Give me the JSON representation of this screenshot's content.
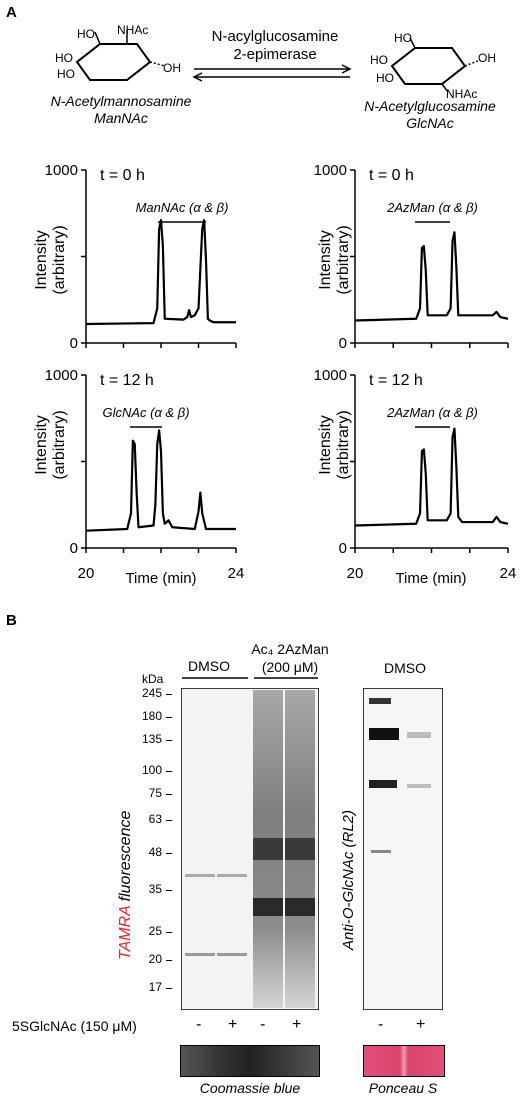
{
  "panel_a": {
    "letter": "A",
    "enzyme_line1": "N-acylglucosamine",
    "enzyme_line2": "2-epimerase",
    "left": {
      "name_line1": "N-Acetylmannosamine",
      "name_line2": "ManNAc",
      "groups": {
        "nhac": "NHAc",
        "ho1": "HO",
        "ho2": "HO",
        "ho3": "HO",
        "oh": "OH"
      }
    },
    "right": {
      "name_line1": "N-Acetylglucosamine",
      "name_line2": "GlcNAc",
      "groups": {
        "ho1": "HO",
        "ho2": "HO",
        "ho3": "HO",
        "oh": "OH",
        "nhac": "NHAc"
      }
    },
    "ylabel_line1": "Intensity",
    "ylabel_line2": "(arbitrary)",
    "xlabel": "Time (min)",
    "x_ticks": [
      "20",
      "24"
    ],
    "y_ticks": [
      "1000",
      "0"
    ]
  },
  "chart_data": [
    {
      "type": "line",
      "id": "tl",
      "time_label": "t = 0 h",
      "peak_label": "ManNAc (α & β)",
      "xlim": [
        20,
        24
      ],
      "ylim": [
        0,
        1000
      ],
      "xlabel": "",
      "ylabel": "Intensity (arbitrary)",
      "x": [
        20.0,
        21.8,
        21.9,
        21.95,
        22.0,
        22.05,
        22.1,
        22.6,
        22.7,
        22.75,
        22.8,
        22.9,
        23.0,
        23.1,
        23.15,
        23.2,
        23.25,
        23.3,
        23.4,
        24.0
      ],
      "y": [
        110,
        115,
        200,
        660,
        710,
        560,
        140,
        135,
        150,
        190,
        150,
        160,
        200,
        660,
        710,
        480,
        140,
        130,
        120,
        120
      ]
    },
    {
      "type": "line",
      "id": "tr",
      "time_label": "t = 0 h",
      "peak_label": "2AzMan (α & β)",
      "xlim": [
        20,
        24
      ],
      "ylim": [
        0,
        1000
      ],
      "xlabel": "",
      "ylabel": "",
      "x": [
        20.0,
        21.6,
        21.7,
        21.75,
        21.8,
        21.85,
        21.9,
        22.4,
        22.5,
        22.55,
        22.6,
        22.65,
        22.7,
        23.6,
        23.7,
        23.8,
        24.0
      ],
      "y": [
        130,
        140,
        200,
        550,
        560,
        420,
        160,
        160,
        200,
        590,
        640,
        440,
        160,
        160,
        180,
        150,
        140
      ]
    },
    {
      "type": "line",
      "id": "bl",
      "time_label": "t = 12 h",
      "peak_label": "GlcNAc (α & β)",
      "xlim": [
        20,
        24
      ],
      "ylim": [
        0,
        1000
      ],
      "xlabel": "Time (min)",
      "ylabel": "Intensity (arbitrary)",
      "x": [
        20.0,
        21.1,
        21.2,
        21.25,
        21.3,
        21.35,
        21.4,
        21.8,
        21.85,
        21.9,
        21.95,
        22.0,
        22.05,
        22.1,
        22.2,
        22.3,
        22.9,
        23.0,
        23.05,
        23.1,
        23.2,
        24.0
      ],
      "y": [
        100,
        110,
        200,
        620,
        600,
        320,
        120,
        130,
        250,
        600,
        680,
        560,
        200,
        140,
        160,
        120,
        110,
        210,
        320,
        200,
        110,
        110
      ]
    },
    {
      "type": "line",
      "id": "br",
      "time_label": "t = 12 h",
      "peak_label": "2AzMan (α & β)",
      "xlim": [
        20,
        24
      ],
      "ylim": [
        0,
        1000
      ],
      "xlabel": "Time (min)",
      "ylabel": "",
      "x": [
        20.0,
        21.6,
        21.7,
        21.75,
        21.8,
        21.85,
        21.9,
        22.4,
        22.5,
        22.55,
        22.6,
        22.65,
        22.7,
        22.8,
        23.6,
        23.7,
        23.8,
        24.0
      ],
      "y": [
        130,
        140,
        200,
        560,
        570,
        430,
        160,
        160,
        200,
        640,
        690,
        470,
        180,
        150,
        150,
        180,
        150,
        140
      ]
    }
  ],
  "panel_b": {
    "letter": "B",
    "treatment_header_line1": "Ac₄ 2AzMan",
    "treatment_header_line2": "(200 μM)",
    "dmso_header": "DMSO",
    "dmso_header_right": "DMSO",
    "kda_label": "kDa",
    "markers": [
      "245",
      "180",
      "135",
      "100",
      "75",
      "63",
      "48",
      "35",
      "25",
      "20",
      "17"
    ],
    "ylabel_tamra": "TAMRA",
    "ylabel_fluor": " fluorescence",
    "ylabel_right": "Anti-O-GlcNAc (RL2)",
    "inhibitor_label": "5SGlcNAc (150 μM)",
    "lane_signs": [
      "-",
      "+",
      "-",
      "+"
    ],
    "lane_signs_right": [
      "-",
      "+"
    ],
    "coomassie_label": "Coomassie blue",
    "ponceau_label": "Ponceau S",
    "tamra_color": "#e3262a"
  }
}
